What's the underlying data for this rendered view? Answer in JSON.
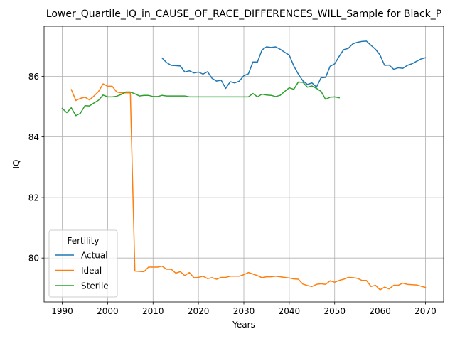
{
  "chart_data": {
    "type": "line",
    "title": "Lower_Quartile_IQ_in_CAUSE_OF_RACE_DIFFERENCES_WILL_Sample for Black_P",
    "xlabel": "Years",
    "ylabel": "IQ",
    "xlim": [
      1986,
      2074
    ],
    "ylim": [
      78.55,
      87.65
    ],
    "xticks": [
      1990,
      2000,
      2010,
      2020,
      2030,
      2040,
      2050,
      2060,
      2070
    ],
    "yticks": [
      80,
      82,
      84,
      86
    ],
    "grid": true,
    "legend": {
      "title": "Fertility",
      "position": "lower left"
    },
    "series": [
      {
        "name": "Actual",
        "color": "#1f77b4",
        "x": [
          2012,
          2013,
          2014,
          2015,
          2016,
          2017,
          2018,
          2019,
          2020,
          2021,
          2022,
          2023,
          2024,
          2025,
          2026,
          2027,
          2028,
          2029,
          2030,
          2031,
          2032,
          2033,
          2034,
          2035,
          2036,
          2037,
          2038,
          2039,
          2040,
          2041,
          2042,
          2043,
          2044,
          2045,
          2046,
          2047,
          2048,
          2049,
          2050,
          2051,
          2052,
          2053,
          2054,
          2055,
          2056,
          2057,
          2058,
          2059,
          2060,
          2061,
          2062,
          2063,
          2064,
          2065,
          2066,
          2067,
          2068,
          2069,
          2070
        ],
        "y": [
          86.6,
          86.45,
          86.36,
          86.35,
          86.34,
          86.14,
          86.18,
          86.11,
          86.14,
          86.07,
          86.15,
          85.93,
          85.84,
          85.87,
          85.6,
          85.82,
          85.78,
          85.84,
          86.02,
          86.08,
          86.47,
          86.47,
          86.87,
          86.97,
          86.95,
          86.97,
          86.89,
          86.79,
          86.7,
          86.34,
          86.07,
          85.85,
          85.73,
          85.78,
          85.64,
          85.95,
          85.96,
          86.33,
          86.41,
          86.66,
          86.88,
          86.92,
          87.07,
          87.12,
          87.15,
          87.16,
          87.02,
          86.89,
          86.7,
          86.36,
          86.37,
          86.23,
          86.28,
          86.26,
          86.36,
          86.41,
          86.49,
          86.57,
          86.61
        ]
      },
      {
        "name": "Ideal",
        "color": "#ff7f0e",
        "x": [
          1992,
          1993,
          1994,
          1995,
          1996,
          1997,
          1998,
          1999,
          2000,
          2001,
          2002,
          2003,
          2004,
          2005,
          2006,
          2007,
          2008,
          2009,
          2010,
          2011,
          2012,
          2013,
          2014,
          2015,
          2016,
          2017,
          2018,
          2019,
          2020,
          2021,
          2022,
          2023,
          2024,
          2025,
          2026,
          2027,
          2028,
          2029,
          2030,
          2031,
          2032,
          2033,
          2034,
          2035,
          2036,
          2037,
          2038,
          2039,
          2040,
          2041,
          2042,
          2043,
          2044,
          2045,
          2046,
          2047,
          2048,
          2049,
          2050,
          2051,
          2052,
          2053,
          2054,
          2055,
          2056,
          2057,
          2058,
          2059,
          2060,
          2061,
          2062,
          2063,
          2064,
          2065,
          2066,
          2067,
          2068,
          2069,
          2070
        ],
        "y": [
          85.56,
          85.2,
          85.27,
          85.31,
          85.22,
          85.35,
          85.5,
          85.75,
          85.67,
          85.67,
          85.48,
          85.45,
          85.45,
          85.45,
          79.57,
          79.56,
          79.55,
          79.7,
          79.7,
          79.7,
          79.73,
          79.63,
          79.63,
          79.5,
          79.55,
          79.42,
          79.52,
          79.35,
          79.36,
          79.4,
          79.32,
          79.35,
          79.3,
          79.36,
          79.36,
          79.4,
          79.4,
          79.4,
          79.45,
          79.52,
          79.47,
          79.42,
          79.35,
          79.38,
          79.38,
          79.4,
          79.38,
          79.36,
          79.34,
          79.31,
          79.3,
          79.14,
          79.09,
          79.06,
          79.13,
          79.15,
          79.13,
          79.25,
          79.2,
          79.26,
          79.3,
          79.36,
          79.35,
          79.33,
          79.26,
          79.26,
          79.06,
          79.1,
          78.95,
          79.04,
          78.98,
          79.1,
          79.1,
          79.17,
          79.13,
          79.12,
          79.11,
          79.07,
          79.03
        ]
      },
      {
        "name": "Sterile",
        "color": "#2ca02c",
        "x": [
          1990,
          1991,
          1992,
          1993,
          1994,
          1995,
          1996,
          1997,
          1998,
          1999,
          2000,
          2001,
          2002,
          2003,
          2004,
          2005,
          2006,
          2007,
          2008,
          2009,
          2010,
          2011,
          2012,
          2013,
          2014,
          2015,
          2016,
          2017,
          2018,
          2019,
          2020,
          2021,
          2022,
          2023,
          2024,
          2025,
          2026,
          2027,
          2028,
          2029,
          2030,
          2031,
          2032,
          2033,
          2034,
          2035,
          2036,
          2037,
          2038,
          2039,
          2040,
          2041,
          2042,
          2043,
          2044,
          2045,
          2046,
          2047,
          2048,
          2049,
          2050,
          2051
        ],
        "y": [
          84.94,
          84.8,
          84.96,
          84.7,
          84.78,
          85.03,
          85.02,
          85.12,
          85.21,
          85.38,
          85.32,
          85.32,
          85.34,
          85.4,
          85.48,
          85.48,
          85.42,
          85.35,
          85.37,
          85.37,
          85.33,
          85.33,
          85.37,
          85.35,
          85.35,
          85.35,
          85.35,
          85.35,
          85.32,
          85.32,
          85.32,
          85.32,
          85.32,
          85.32,
          85.32,
          85.32,
          85.32,
          85.32,
          85.32,
          85.32,
          85.32,
          85.32,
          85.43,
          85.32,
          85.41,
          85.38,
          85.37,
          85.33,
          85.37,
          85.5,
          85.62,
          85.57,
          85.81,
          85.8,
          85.64,
          85.68,
          85.6,
          85.5,
          85.24,
          85.31,
          85.32,
          85.29
        ]
      }
    ]
  }
}
